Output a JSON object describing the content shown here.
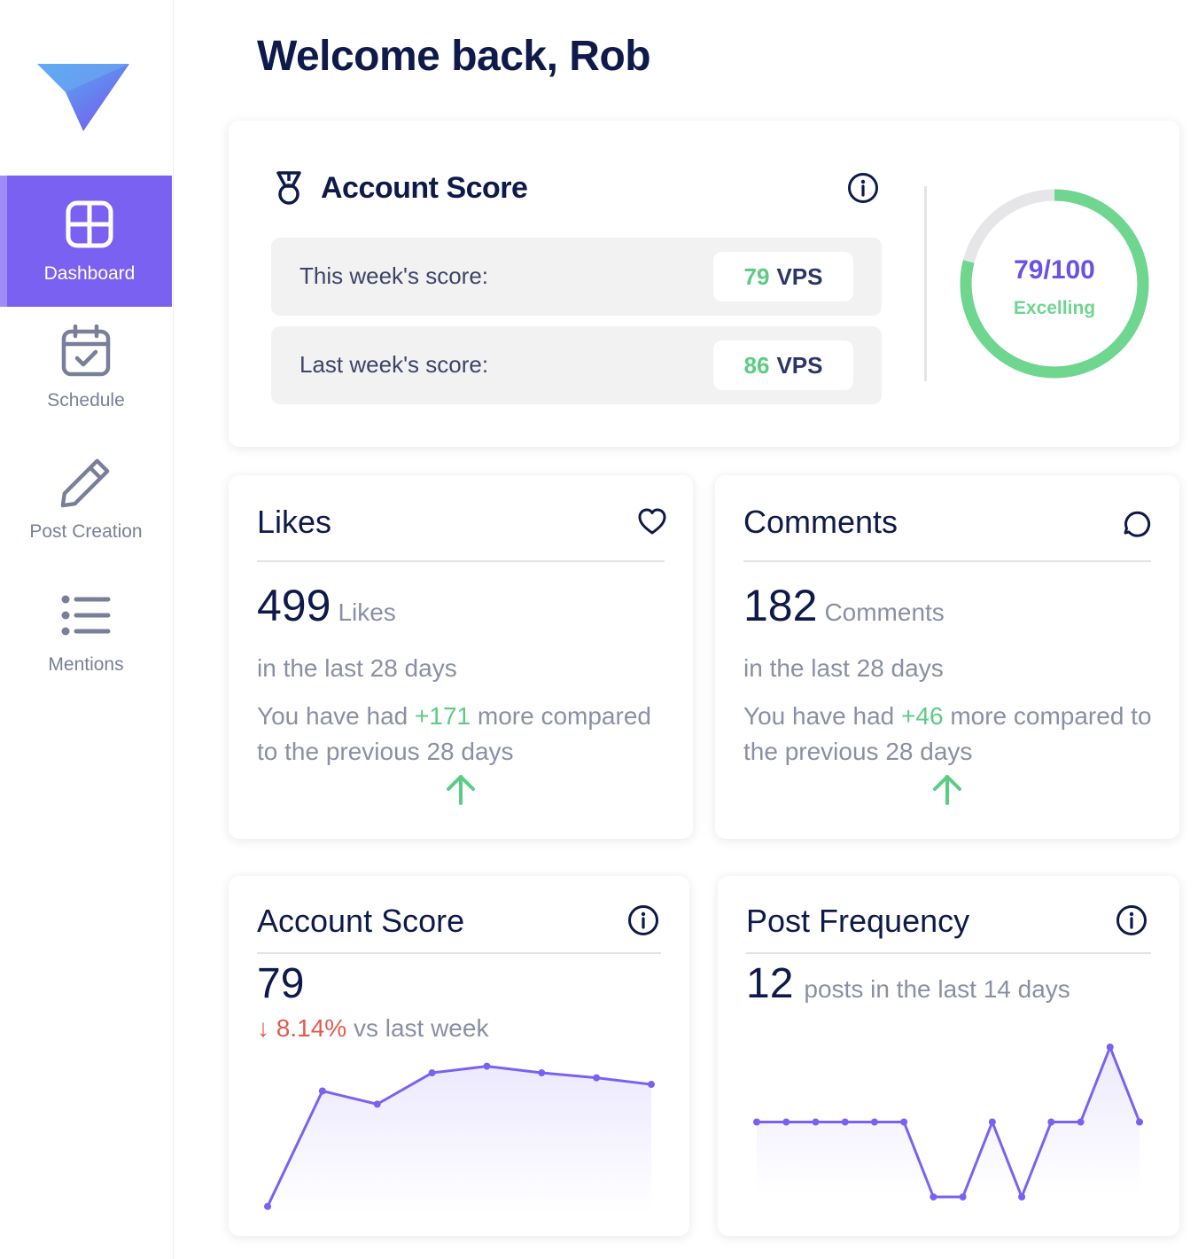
{
  "header": {
    "welcome": "Welcome back, Rob"
  },
  "sidebar": {
    "items": [
      {
        "label": "Dashboard",
        "icon": "grid-icon",
        "active": true
      },
      {
        "label": "Schedule",
        "icon": "calendar-icon",
        "active": false
      },
      {
        "label": "Post Creation",
        "icon": "pencil-icon",
        "active": false
      },
      {
        "label": "Mentions",
        "icon": "list-icon",
        "active": false
      }
    ]
  },
  "account_score": {
    "title": "Account Score",
    "this_week_label": "This week's score:",
    "this_week_value": "79",
    "last_week_label": "Last week's score:",
    "last_week_value": "86",
    "unit": "VPS",
    "ring_value": 79,
    "ring_max": 100,
    "ring_text": "79/100",
    "ring_status": "Excelling"
  },
  "likes": {
    "title": "Likes",
    "count": "499",
    "unit": "Likes",
    "period": "in the last 28 days",
    "compare_prefix": "You have had",
    "delta": "+171",
    "compare_suffix": "more compared to the previous 28 days"
  },
  "comments": {
    "title": "Comments",
    "count": "182",
    "unit": "Comments",
    "period": "in the last 28 days",
    "compare_prefix": "You have had",
    "delta": "+46",
    "compare_suffix": "more compared to the previous 28 days"
  },
  "score_chart": {
    "title": "Account Score",
    "value": "79",
    "change": "↓ 8.14%",
    "change_suffix": "vs last week"
  },
  "frequency_chart": {
    "title": "Post Frequency",
    "value": "12",
    "subtitle": "posts in the last 14 days"
  },
  "colors": {
    "accent": "#7b61f1",
    "positive": "#5ccc84",
    "negative": "#e05a4f",
    "line": "#7b61f1"
  },
  "chart_data": [
    {
      "type": "area",
      "values": [
        5,
        75,
        67,
        86,
        90,
        86,
        83,
        79
      ],
      "ylim": [
        0,
        100
      ]
    },
    {
      "type": "area",
      "values": [
        1,
        1,
        1,
        1,
        1,
        1,
        0,
        0,
        1,
        0,
        1,
        1,
        2,
        1
      ],
      "ylim": [
        0,
        2
      ]
    }
  ]
}
